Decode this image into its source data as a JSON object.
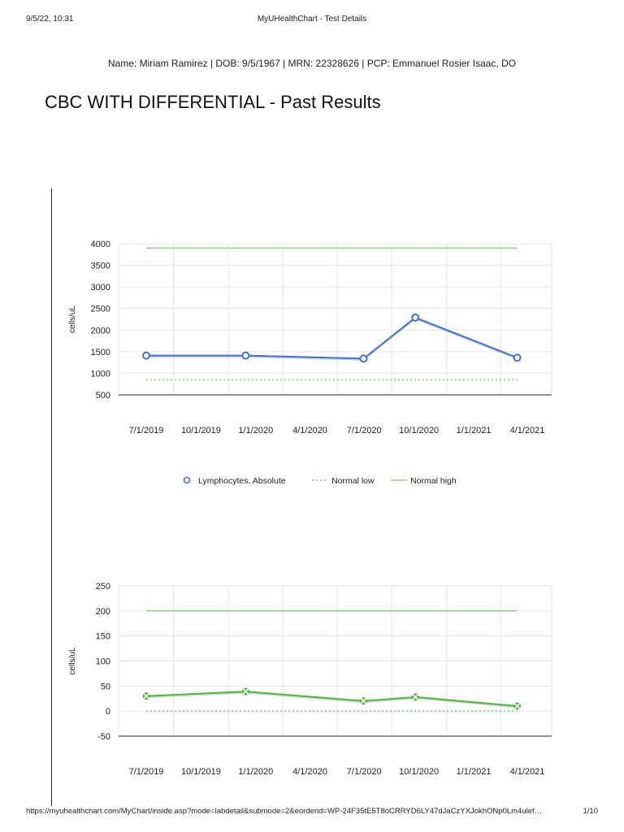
{
  "print_header": {
    "datetime": "9/5/22, 10:31",
    "doc_title": "MyUHealthChart - Test Details"
  },
  "patient_line": "Name: Miriam Ramirez | DOB: 9/5/1967 | MRN: 22328626 | PCP: Emmanuel Rosier Isaac, DO",
  "page_title": "CBC WITH DIFFERENTIAL - Past Results",
  "colors": {
    "series_blue": "#3f6fd8",
    "series_green": "#4db83a",
    "normal_line": "#93d48b",
    "grid": "#e6e6e6",
    "axis": "#222222"
  },
  "chart_data": [
    {
      "type": "line",
      "ylabel": "cells/uL",
      "x_ticks": [
        "7/1/2019",
        "10/1/2019",
        "1/1/2020",
        "4/1/2020",
        "7/1/2020",
        "10/1/2020",
        "1/1/2021",
        "4/1/2021"
      ],
      "y_ticks": [
        500,
        1000,
        1500,
        2000,
        2500,
        3000,
        3500,
        4000
      ],
      "ylim": [
        500,
        4000
      ],
      "grid": true,
      "legend_position": "bottom",
      "series": [
        {
          "name": "Lymphocytes, Absolute",
          "style": "line-circle-markers",
          "color": "#3f6fd8",
          "points": [
            {
              "x": "2019-07-01",
              "y": 1410
            },
            {
              "x": "2019-12-15",
              "y": 1410
            },
            {
              "x": "2020-06-30",
              "y": 1340
            },
            {
              "x": "2020-09-25",
              "y": 2290
            },
            {
              "x": "2021-03-15",
              "y": 1360
            }
          ]
        },
        {
          "name": "Normal low",
          "style": "dotted",
          "color": "#93d48b",
          "points": [
            {
              "x": "2019-07-01",
              "y": 850
            },
            {
              "x": "2021-03-15",
              "y": 850
            }
          ]
        },
        {
          "name": "Normal high",
          "style": "solid",
          "color": "#93d48b",
          "points": [
            {
              "x": "2019-07-01",
              "y": 3900
            },
            {
              "x": "2021-03-15",
              "y": 3900
            }
          ]
        }
      ]
    },
    {
      "type": "line",
      "ylabel": "cells/uL",
      "x_ticks": [
        "7/1/2019",
        "10/1/2019",
        "1/1/2020",
        "4/1/2020",
        "7/1/2020",
        "10/1/2020",
        "1/1/2021",
        "4/1/2021"
      ],
      "y_ticks": [
        -50,
        0,
        50,
        100,
        150,
        200,
        250
      ],
      "ylim": [
        -50,
        250
      ],
      "grid": true,
      "series": [
        {
          "style": "line-x-markers",
          "color": "#4db83a",
          "points": [
            {
              "x": "2019-07-01",
              "y": 30
            },
            {
              "x": "2019-12-15",
              "y": 39
            },
            {
              "x": "2020-06-30",
              "y": 20
            },
            {
              "x": "2020-09-25",
              "y": 28
            },
            {
              "x": "2021-03-15",
              "y": 10
            }
          ]
        },
        {
          "style": "dotted",
          "color": "#93d48b",
          "points": [
            {
              "x": "2019-07-01",
              "y": 0
            },
            {
              "x": "2021-03-15",
              "y": 0
            }
          ]
        },
        {
          "style": "solid",
          "color": "#93d48b",
          "points": [
            {
              "x": "2019-07-01",
              "y": 200
            },
            {
              "x": "2021-03-15",
              "y": 200
            }
          ]
        }
      ]
    }
  ],
  "print_footer": {
    "url": "https://myuhealthchart.com/MyChart/inside.asp?mode=labdetail&submode=2&eorderid=WP-24F35tE5T8oCRRYD6LY47dJaCzYXJokhONp0Lm4ulef…",
    "page": "1/10"
  }
}
